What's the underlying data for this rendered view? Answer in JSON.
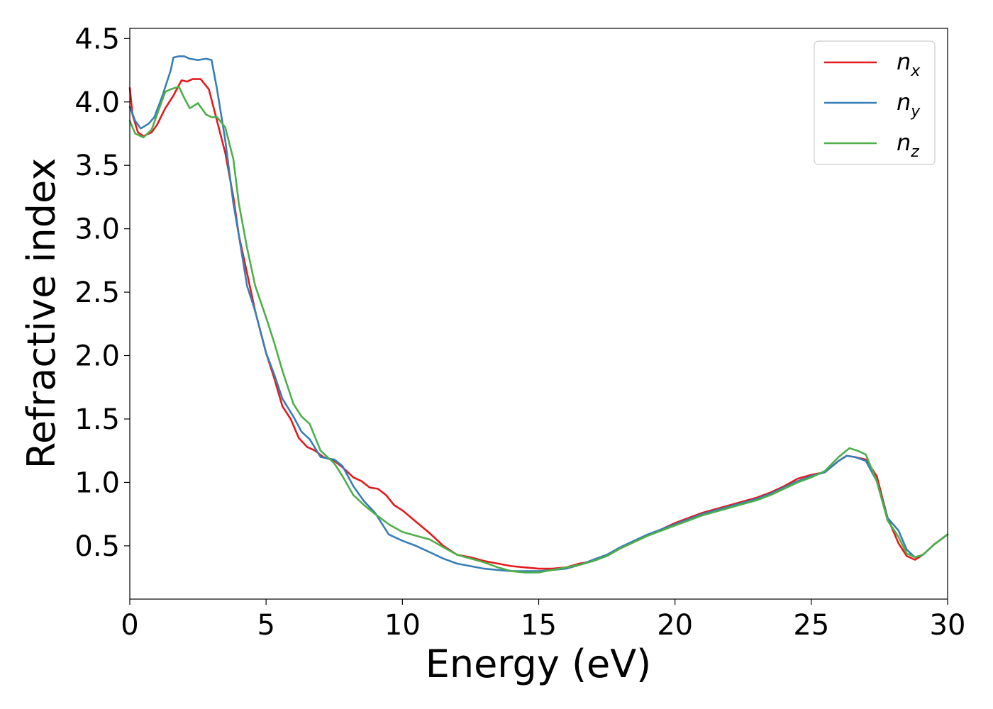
{
  "chart_data": {
    "type": "line",
    "xlabel": "Energy (eV)",
    "ylabel": "Refractive index",
    "xlim": [
      0,
      30
    ],
    "ylim": [
      0.08,
      4.58
    ],
    "x_ticks": [
      0,
      5,
      10,
      15,
      20,
      25,
      30
    ],
    "x_tick_labels": [
      "0",
      "5",
      "10",
      "15",
      "20",
      "25",
      "30"
    ],
    "y_ticks": [
      0.5,
      1.0,
      1.5,
      2.0,
      2.5,
      3.0,
      3.5,
      4.0,
      4.5
    ],
    "y_tick_labels": [
      "0.5",
      "1.0",
      "1.5",
      "2.0",
      "2.5",
      "3.0",
      "3.5",
      "4.0",
      "4.5"
    ],
    "grid": false,
    "legend_position": "top-right",
    "series": [
      {
        "name": "n_x",
        "label_main": "n",
        "label_sub": "x",
        "color": "#e41a1c",
        "points": [
          [
            0,
            4.11
          ],
          [
            0.1,
            3.9
          ],
          [
            0.3,
            3.76
          ],
          [
            0.5,
            3.73
          ],
          [
            0.8,
            3.76
          ],
          [
            1.0,
            3.82
          ],
          [
            1.3,
            3.95
          ],
          [
            1.6,
            4.05
          ],
          [
            1.9,
            4.17
          ],
          [
            2.1,
            4.16
          ],
          [
            2.3,
            4.18
          ],
          [
            2.6,
            4.18
          ],
          [
            2.9,
            4.1
          ],
          [
            3.2,
            3.85
          ],
          [
            3.5,
            3.6
          ],
          [
            3.8,
            3.25
          ],
          [
            4.0,
            2.95
          ],
          [
            4.3,
            2.65
          ],
          [
            4.6,
            2.35
          ],
          [
            5.0,
            2.02
          ],
          [
            5.3,
            1.82
          ],
          [
            5.6,
            1.6
          ],
          [
            5.9,
            1.5
          ],
          [
            6.2,
            1.35
          ],
          [
            6.5,
            1.28
          ],
          [
            6.8,
            1.25
          ],
          [
            7.1,
            1.2
          ],
          [
            7.5,
            1.17
          ],
          [
            7.8,
            1.12
          ],
          [
            8.2,
            1.04
          ],
          [
            8.5,
            1.01
          ],
          [
            8.8,
            0.96
          ],
          [
            9.1,
            0.95
          ],
          [
            9.4,
            0.9
          ],
          [
            9.7,
            0.82
          ],
          [
            10.0,
            0.78
          ],
          [
            10.5,
            0.69
          ],
          [
            11.0,
            0.6
          ],
          [
            11.5,
            0.5
          ],
          [
            12.0,
            0.43
          ],
          [
            12.5,
            0.41
          ],
          [
            13.0,
            0.38
          ],
          [
            13.5,
            0.36
          ],
          [
            14.0,
            0.34
          ],
          [
            14.5,
            0.33
          ],
          [
            15.0,
            0.32
          ],
          [
            15.5,
            0.32
          ],
          [
            16.0,
            0.33
          ],
          [
            16.5,
            0.36
          ],
          [
            17.0,
            0.38
          ],
          [
            17.5,
            0.42
          ],
          [
            18.0,
            0.48
          ],
          [
            18.5,
            0.53
          ],
          [
            19.0,
            0.58
          ],
          [
            19.5,
            0.63
          ],
          [
            20.0,
            0.68
          ],
          [
            20.5,
            0.72
          ],
          [
            21.0,
            0.76
          ],
          [
            21.5,
            0.79
          ],
          [
            22.0,
            0.82
          ],
          [
            22.5,
            0.85
          ],
          [
            23.0,
            0.88
          ],
          [
            23.5,
            0.92
          ],
          [
            24.0,
            0.97
          ],
          [
            24.5,
            1.03
          ],
          [
            25.0,
            1.06
          ],
          [
            25.5,
            1.08
          ],
          [
            26.0,
            1.17
          ],
          [
            26.3,
            1.21
          ],
          [
            26.6,
            1.2
          ],
          [
            27.0,
            1.18
          ],
          [
            27.4,
            1.05
          ],
          [
            27.8,
            0.72
          ],
          [
            28.2,
            0.52
          ],
          [
            28.5,
            0.42
          ],
          [
            28.8,
            0.39
          ],
          [
            29.1,
            0.43
          ],
          [
            29.5,
            0.51
          ],
          [
            30.0,
            0.59
          ]
        ]
      },
      {
        "name": "n_y",
        "label_main": "n",
        "label_sub": "y",
        "color": "#377eb8",
        "points": [
          [
            0,
            3.96
          ],
          [
            0.2,
            3.85
          ],
          [
            0.4,
            3.79
          ],
          [
            0.7,
            3.83
          ],
          [
            0.9,
            3.88
          ],
          [
            1.2,
            4.05
          ],
          [
            1.5,
            4.25
          ],
          [
            1.6,
            4.35
          ],
          [
            1.8,
            4.36
          ],
          [
            2.0,
            4.36
          ],
          [
            2.2,
            4.34
          ],
          [
            2.5,
            4.33
          ],
          [
            2.8,
            4.34
          ],
          [
            3.0,
            4.33
          ],
          [
            3.2,
            4.1
          ],
          [
            3.5,
            3.7
          ],
          [
            3.8,
            3.2
          ],
          [
            4.0,
            2.95
          ],
          [
            4.3,
            2.55
          ],
          [
            4.6,
            2.35
          ],
          [
            5.0,
            2.02
          ],
          [
            5.3,
            1.85
          ],
          [
            5.6,
            1.66
          ],
          [
            6.0,
            1.52
          ],
          [
            6.3,
            1.4
          ],
          [
            6.6,
            1.34
          ],
          [
            7.0,
            1.2
          ],
          [
            7.5,
            1.18
          ],
          [
            7.8,
            1.13
          ],
          [
            8.2,
            0.97
          ],
          [
            8.6,
            0.85
          ],
          [
            9.0,
            0.76
          ],
          [
            9.5,
            0.59
          ],
          [
            10.0,
            0.54
          ],
          [
            10.5,
            0.5
          ],
          [
            11.0,
            0.45
          ],
          [
            11.5,
            0.4
          ],
          [
            12.0,
            0.36
          ],
          [
            12.5,
            0.34
          ],
          [
            13.0,
            0.32
          ],
          [
            13.5,
            0.31
          ],
          [
            14.0,
            0.3
          ],
          [
            14.5,
            0.3
          ],
          [
            15.0,
            0.3
          ],
          [
            15.5,
            0.31
          ],
          [
            16.0,
            0.32
          ],
          [
            16.5,
            0.35
          ],
          [
            17.0,
            0.39
          ],
          [
            17.5,
            0.43
          ],
          [
            18.0,
            0.49
          ],
          [
            18.5,
            0.54
          ],
          [
            19.0,
            0.59
          ],
          [
            19.5,
            0.63
          ],
          [
            20.0,
            0.67
          ],
          [
            20.5,
            0.71
          ],
          [
            21.0,
            0.75
          ],
          [
            21.5,
            0.78
          ],
          [
            22.0,
            0.81
          ],
          [
            22.5,
            0.84
          ],
          [
            23.0,
            0.87
          ],
          [
            23.5,
            0.91
          ],
          [
            24.0,
            0.96
          ],
          [
            24.5,
            1.01
          ],
          [
            25.0,
            1.05
          ],
          [
            25.5,
            1.08
          ],
          [
            26.0,
            1.17
          ],
          [
            26.3,
            1.21
          ],
          [
            26.6,
            1.2
          ],
          [
            27.0,
            1.17
          ],
          [
            27.4,
            1.01
          ],
          [
            27.8,
            0.72
          ],
          [
            28.2,
            0.62
          ],
          [
            28.5,
            0.47
          ],
          [
            28.8,
            0.41
          ],
          [
            29.1,
            0.43
          ],
          [
            29.5,
            0.51
          ],
          [
            30.0,
            0.59
          ]
        ]
      },
      {
        "name": "n_z",
        "label_main": "n",
        "label_sub": "z",
        "color": "#4daf4a",
        "points": [
          [
            0,
            3.85
          ],
          [
            0.2,
            3.75
          ],
          [
            0.5,
            3.72
          ],
          [
            0.8,
            3.78
          ],
          [
            1.0,
            3.9
          ],
          [
            1.3,
            4.08
          ],
          [
            1.5,
            4.1
          ],
          [
            1.8,
            4.12
          ],
          [
            2.0,
            4.03
          ],
          [
            2.2,
            3.95
          ],
          [
            2.5,
            3.99
          ],
          [
            2.8,
            3.9
          ],
          [
            3.0,
            3.88
          ],
          [
            3.2,
            3.88
          ],
          [
            3.5,
            3.8
          ],
          [
            3.8,
            3.55
          ],
          [
            4.0,
            3.2
          ],
          [
            4.3,
            2.85
          ],
          [
            4.6,
            2.55
          ],
          [
            5.0,
            2.3
          ],
          [
            5.3,
            2.1
          ],
          [
            5.6,
            1.88
          ],
          [
            6.0,
            1.62
          ],
          [
            6.3,
            1.52
          ],
          [
            6.6,
            1.46
          ],
          [
            7.0,
            1.25
          ],
          [
            7.5,
            1.15
          ],
          [
            7.8,
            1.05
          ],
          [
            8.2,
            0.9
          ],
          [
            8.6,
            0.82
          ],
          [
            9.0,
            0.75
          ],
          [
            9.5,
            0.67
          ],
          [
            10.0,
            0.61
          ],
          [
            10.5,
            0.58
          ],
          [
            11.0,
            0.55
          ],
          [
            11.5,
            0.49
          ],
          [
            12.0,
            0.43
          ],
          [
            12.5,
            0.4
          ],
          [
            13.0,
            0.37
          ],
          [
            13.5,
            0.33
          ],
          [
            14.0,
            0.3
          ],
          [
            14.5,
            0.29
          ],
          [
            15.0,
            0.29
          ],
          [
            15.5,
            0.31
          ],
          [
            16.0,
            0.33
          ],
          [
            16.5,
            0.35
          ],
          [
            17.0,
            0.38
          ],
          [
            17.5,
            0.42
          ],
          [
            18.0,
            0.48
          ],
          [
            18.5,
            0.53
          ],
          [
            19.0,
            0.58
          ],
          [
            19.5,
            0.62
          ],
          [
            20.0,
            0.66
          ],
          [
            20.5,
            0.7
          ],
          [
            21.0,
            0.74
          ],
          [
            21.5,
            0.77
          ],
          [
            22.0,
            0.8
          ],
          [
            22.5,
            0.83
          ],
          [
            23.0,
            0.86
          ],
          [
            23.5,
            0.9
          ],
          [
            24.0,
            0.95
          ],
          [
            24.5,
            1.0
          ],
          [
            25.0,
            1.04
          ],
          [
            25.5,
            1.09
          ],
          [
            26.0,
            1.2
          ],
          [
            26.4,
            1.27
          ],
          [
            26.7,
            1.25
          ],
          [
            27.0,
            1.22
          ],
          [
            27.4,
            1.01
          ],
          [
            27.8,
            0.7
          ],
          [
            28.2,
            0.57
          ],
          [
            28.5,
            0.44
          ],
          [
            28.8,
            0.41
          ],
          [
            29.1,
            0.43
          ],
          [
            29.5,
            0.51
          ],
          [
            30.0,
            0.59
          ]
        ]
      }
    ]
  }
}
